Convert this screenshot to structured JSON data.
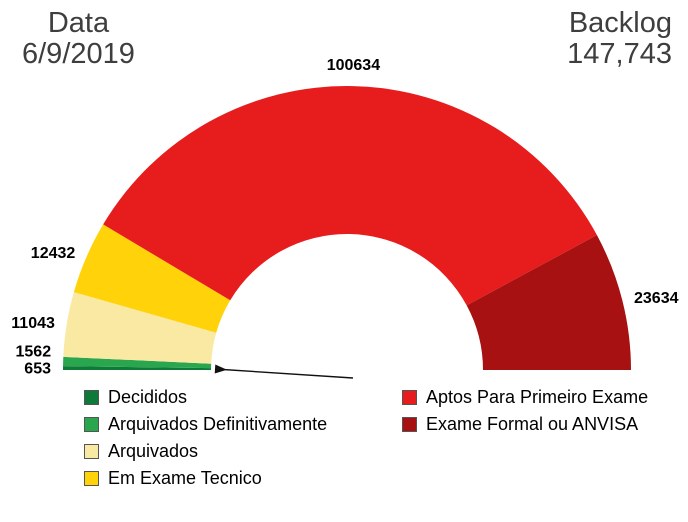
{
  "header": {
    "date_label": "Data",
    "date_value": "6/9/2019",
    "backlog_label": "Backlog",
    "backlog_value": "147,743"
  },
  "chart_data": {
    "type": "pie",
    "subtype": "semicircle-donut",
    "title": "Backlog",
    "total_shown": "147,743",
    "date_shown": "6/9/2019",
    "order": "drawn left (180°) to right (0°)",
    "legend_position": "bottom, two columns",
    "slices": [
      {
        "label": "Decididos",
        "value": 653,
        "color": "#0e7a3a",
        "legend_column": "left"
      },
      {
        "label": "Arquivados Definitivamente",
        "value": 1562,
        "color": "#2aa74e",
        "legend_column": "left"
      },
      {
        "label": "Arquivados",
        "value": 11043,
        "color": "#f9e9a2",
        "legend_column": "left"
      },
      {
        "label": "Em Exame Tecnico",
        "value": 12432,
        "color": "#ffd20a",
        "legend_column": "left"
      },
      {
        "label": "Aptos Para Primeiro Exame",
        "value": 100634,
        "color": "#e71c1c",
        "legend_column": "right"
      },
      {
        "label": "Exame Formal ou ANVISA",
        "value": 23634,
        "color": "#a81111",
        "legend_column": "right"
      }
    ]
  }
}
